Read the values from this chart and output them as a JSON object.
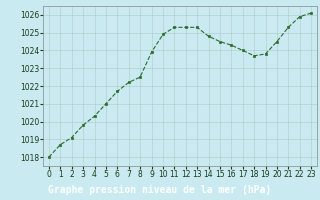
{
  "x": [
    0,
    1,
    2,
    3,
    4,
    5,
    6,
    7,
    8,
    9,
    10,
    11,
    12,
    13,
    14,
    15,
    16,
    17,
    18,
    19,
    20,
    21,
    22,
    23
  ],
  "y": [
    1018.0,
    1018.7,
    1019.1,
    1019.8,
    1020.3,
    1021.0,
    1021.7,
    1022.2,
    1022.5,
    1023.9,
    1024.9,
    1025.3,
    1025.3,
    1025.3,
    1024.8,
    1024.5,
    1024.3,
    1024.0,
    1023.7,
    1023.8,
    1024.5,
    1025.3,
    1025.9,
    1026.1
  ],
  "ylim": [
    1017.5,
    1026.5
  ],
  "xlim": [
    -0.5,
    23.5
  ],
  "yticks": [
    1018,
    1019,
    1020,
    1021,
    1022,
    1023,
    1024,
    1025,
    1026
  ],
  "xticks": [
    0,
    1,
    2,
    3,
    4,
    5,
    6,
    7,
    8,
    9,
    10,
    11,
    12,
    13,
    14,
    15,
    16,
    17,
    18,
    19,
    20,
    21,
    22,
    23
  ],
  "line_color": "#2d6a2d",
  "marker": "s",
  "marker_size": 1.8,
  "bg_color": "#c8eaf0",
  "grid_color": "#b0c8c8",
  "title": "Graphe pression niveau de la mer (hPa)",
  "title_fontsize": 7.0,
  "tick_fontsize": 5.5,
  "title_color": "#ffffff",
  "title_bg_color": "#2d6a2d",
  "axis_label_color": "#1a3a1a",
  "spine_color": "#888888"
}
